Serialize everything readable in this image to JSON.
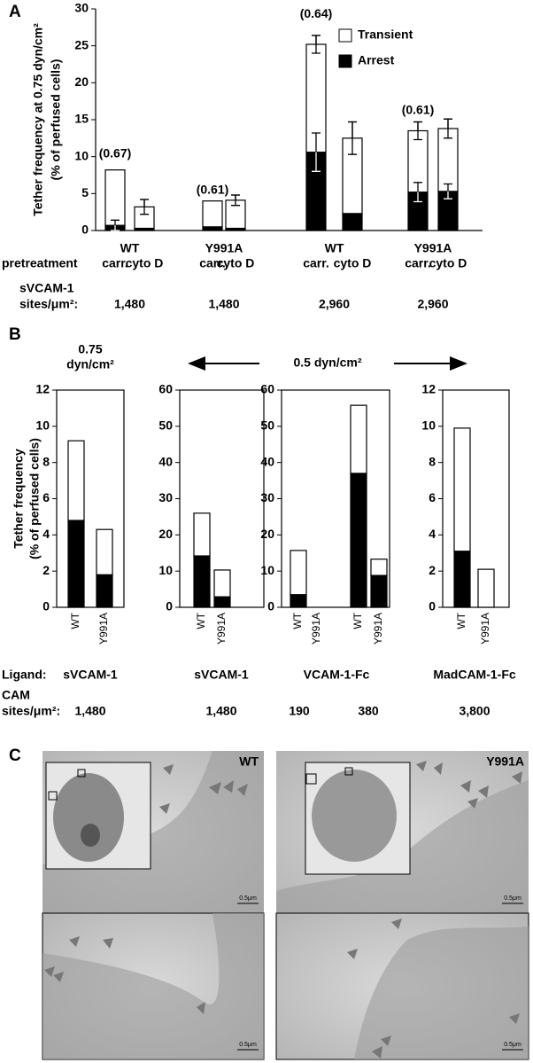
{
  "panels": {
    "a": "A",
    "b": "B",
    "c": "C"
  },
  "chart_data": [
    {
      "type": "bar",
      "stacked": true,
      "ylabel": [
        "Tether frequency at 0.75  dyn/cm²",
        "(% of perfused cells)"
      ],
      "groups": [
        "WT",
        "Y991A",
        "WT",
        "Y991A"
      ],
      "group_annotations": [
        "(0.67)",
        "(0.61)",
        "(0.64)",
        "(0.61)"
      ],
      "categories": [
        "carr.",
        "cyto D",
        "carr.",
        "cyto D",
        "carr.",
        "cyto D",
        "carr.",
        "cyto D"
      ],
      "series": [
        {
          "name": "Arrest",
          "color": "#000000",
          "values": [
            0.7,
            0.3,
            0.5,
            0.3,
            10.6,
            2.3,
            5.2,
            5.3
          ],
          "errors": [
            0.7,
            null,
            null,
            null,
            2.6,
            null,
            1.3,
            1.0
          ]
        },
        {
          "name": "Transient",
          "color": "#ffffff",
          "values": [
            7.5,
            2.9,
            3.5,
            3.8,
            14.6,
            10.2,
            8.3,
            8.5
          ],
          "errors": [
            null,
            1.0,
            null,
            0.7,
            1.2,
            2.2,
            1.2,
            1.3
          ]
        }
      ],
      "legend_order": [
        1,
        0
      ],
      "ylim": [
        0,
        30
      ],
      "yticks": [
        0,
        5,
        10,
        15,
        20,
        25,
        30
      ],
      "row_labels": [
        "pretreatment",
        "sVCAM-1",
        "sites/μm²:"
      ],
      "site_values": [
        "1,480",
        "1,480",
        "2,960",
        "2,960"
      ]
    },
    {
      "type": "bar",
      "stacked": true,
      "title": [
        "0.75",
        "dyn/cm²"
      ],
      "ylabel": [
        "Tether frequency",
        "(% of perfused cells)"
      ],
      "categories": [
        "WT",
        "Y991A"
      ],
      "series": [
        {
          "color": "#000000",
          "values": [
            4.8,
            1.8
          ]
        },
        {
          "color": "#ffffff",
          "values": [
            4.4,
            2.5
          ]
        }
      ],
      "ylim": [
        0,
        12
      ],
      "yticks": [
        0,
        2,
        4,
        6,
        8,
        10,
        12
      ]
    },
    {
      "type": "bar",
      "stacked": true,
      "categories": [
        "WT",
        "Y991A"
      ],
      "series": [
        {
          "color": "#000000",
          "values": [
            14.2,
            2.9
          ]
        },
        {
          "color": "#ffffff",
          "values": [
            11.8,
            7.4
          ]
        }
      ],
      "ylim": [
        0,
        60
      ],
      "yticks": [
        0,
        10,
        20,
        30,
        40,
        50,
        60
      ]
    },
    {
      "type": "bar",
      "stacked": true,
      "categories": [
        "WT",
        "Y991A",
        "WT",
        "Y991A"
      ],
      "series": [
        {
          "color": "#000000",
          "values": [
            3.5,
            0,
            37,
            8.8
          ]
        },
        {
          "color": "#ffffff",
          "values": [
            12.2,
            0,
            18.8,
            4.5
          ]
        }
      ],
      "ylim": [
        0,
        60
      ],
      "yticks": [
        0,
        10,
        20,
        30,
        40,
        50,
        60
      ]
    },
    {
      "type": "bar",
      "stacked": true,
      "categories": [
        "WT",
        "Y991A"
      ],
      "series": [
        {
          "color": "#000000",
          "values": [
            3.1,
            0
          ]
        },
        {
          "color": "#ffffff",
          "values": [
            6.8,
            2.1
          ]
        }
      ],
      "ylim": [
        0,
        12
      ],
      "yticks": [
        0,
        2,
        4,
        6,
        8,
        10,
        12
      ]
    }
  ],
  "panel_b": {
    "shared_pressure": "0.5 dyn/cm²",
    "ligand_label": "Ligand:",
    "ligands": [
      "sVCAM-1",
      "sVCAM-1",
      "VCAM-1-Fc",
      "MadCAM-1-Fc"
    ],
    "cam_label": [
      "CAM",
      "sites/μm²:"
    ],
    "sites": [
      "1,480",
      "1,480",
      "190",
      "380",
      "3,800"
    ]
  },
  "panel_c": {
    "images": [
      {
        "label": "WT",
        "scale_bars": [
          "0.5μm",
          "0.5μm"
        ]
      },
      {
        "label": "Y991A",
        "scale_bars": [
          "0.5μm",
          "0.5μm"
        ]
      }
    ]
  }
}
